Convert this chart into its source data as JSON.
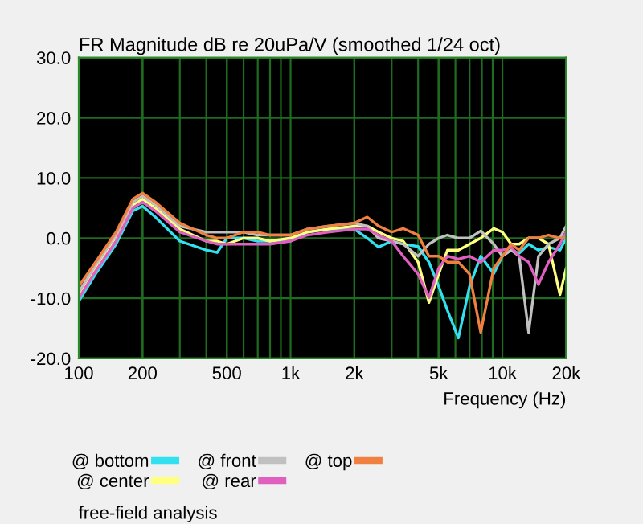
{
  "chart_data": {
    "type": "line",
    "title": "FR Magnitude dB re 20uPa/V (smoothed 1/24 oct)",
    "xlabel": "Frequency (Hz)",
    "log": "x",
    "grid": true,
    "legend": "bottom",
    "line_style": "solid",
    "marker": "none",
    "xlim": [
      100,
      20000
    ],
    "xticks": [
      100,
      200,
      500,
      {
        "value": 1000,
        "label": "1k"
      },
      {
        "value": 2000,
        "label": "2k"
      },
      {
        "value": 5000,
        "label": "5k"
      },
      {
        "value": 10000,
        "label": "10k"
      },
      {
        "value": 20000,
        "label": "20k"
      }
    ],
    "ylim": [
      -20,
      30
    ],
    "yticks": [
      {
        "value": -20,
        "label": "-20.0"
      },
      {
        "value": -10,
        "label": "-10.0"
      },
      {
        "value": 0,
        "label": "0.0"
      },
      {
        "value": 10,
        "label": "10.0"
      },
      {
        "value": 20,
        "label": "20.0"
      },
      {
        "value": 30,
        "label": "30.0"
      }
    ],
    "x": [
      100,
      120,
      150,
      180,
      200,
      230,
      300,
      400,
      450,
      500,
      600,
      700,
      800,
      1000,
      1200,
      1500,
      2000,
      2300,
      2600,
      3000,
      3400,
      4000,
      4500,
      5000,
      5500,
      6200,
      7000,
      7900,
      9100,
      10000,
      11000,
      12000,
      13300,
      14800,
      16500,
      18700,
      20000
    ],
    "series": [
      {
        "name": "@ bottom",
        "color": "#33e0f0",
        "values": [
          -10.5,
          -6,
          -1,
          4.5,
          5.3,
          3.5,
          -0.5,
          -2,
          -2.4,
          0,
          0,
          -0.5,
          -0.5,
          -0.5,
          1,
          1.5,
          1.5,
          0,
          -1.5,
          -0.5,
          -1,
          -1.4,
          -4,
          -8,
          -12,
          -16.6,
          -8,
          -3,
          -5.9,
          -3,
          -2,
          -2.5,
          -1,
          -2,
          -1.5,
          -2,
          0
        ]
      },
      {
        "name": "@ center",
        "color": "#ffff80",
        "values": [
          -9.5,
          -5,
          0,
          5.5,
          6.5,
          5,
          1.5,
          -0.5,
          -0.5,
          -1,
          0,
          0,
          -0.5,
          0,
          1,
          1.5,
          2,
          2,
          1,
          0,
          -0.5,
          -4,
          -10.7,
          -6,
          -2,
          -2,
          -1,
          0,
          1.6,
          1,
          -1,
          -1,
          0,
          0,
          -1,
          -9.4,
          -5
        ]
      },
      {
        "name": "@ front",
        "color": "#c0c0c0",
        "values": [
          -9,
          -4.5,
          0.5,
          6,
          7,
          5.5,
          2,
          1,
          1,
          1,
          1,
          0.5,
          0.5,
          0.5,
          1.5,
          2,
          2.5,
          2,
          0,
          -0.5,
          -1,
          -3,
          -1,
          0,
          0.5,
          0,
          0,
          1.2,
          -1,
          -3,
          -2,
          -3,
          -15.7,
          -3,
          -1,
          0,
          2
        ]
      },
      {
        "name": "@ rear",
        "color": "#e060c0",
        "values": [
          -10,
          -5.5,
          -0.5,
          5,
          6,
          4.5,
          1,
          -0.5,
          -1,
          -1,
          -1,
          -1,
          -1,
          -0.5,
          0.5,
          1,
          1.5,
          1.5,
          0.5,
          -0.5,
          -3,
          -6,
          -9.9,
          -5,
          -3,
          -3.5,
          -3,
          -4,
          -2,
          -2,
          -1.5,
          -3,
          -4,
          -7.7,
          -4,
          -1,
          1
        ]
      },
      {
        "name": "@ top",
        "color": "#f08040",
        "values": [
          -8,
          -4,
          1,
          6.5,
          7.5,
          6,
          2.5,
          0.5,
          0,
          0,
          1,
          1,
          0.5,
          0.5,
          1.5,
          2,
          2.5,
          3.5,
          2,
          1,
          1.6,
          0.5,
          -3,
          -3,
          -4,
          -4,
          -6,
          -15.7,
          -5,
          -3,
          -1,
          -2,
          0,
          0,
          0.5,
          0,
          0
        ]
      }
    ],
    "annotations": [
      "free-field analysis"
    ]
  }
}
